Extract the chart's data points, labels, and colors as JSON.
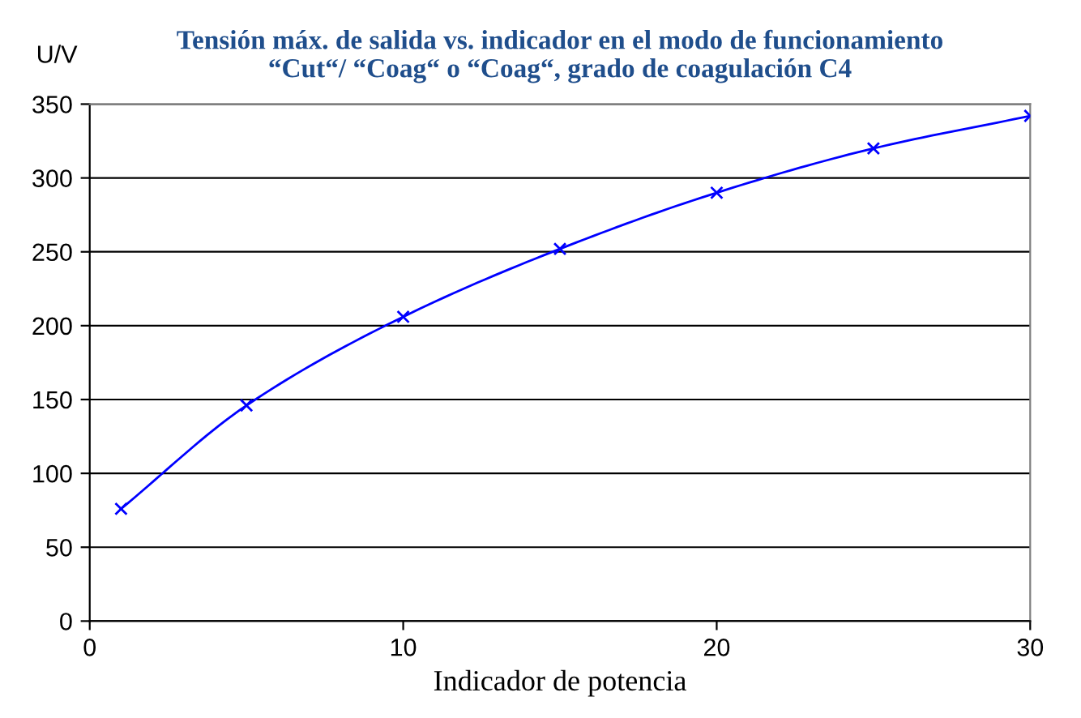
{
  "chart_data": {
    "type": "line",
    "title": "Tensión máx. de salida vs. indicador en el modo de funcionamiento\n“Cut“/ “Coag“ o “Coag“, grado de coagulación C4",
    "xlabel": "Indicador de potencia",
    "ylabel": "U/V",
    "x": [
      1,
      5,
      10,
      15,
      20,
      25,
      30
    ],
    "series": [
      {
        "color": "#0000ff",
        "values": [
          76,
          146,
          206,
          252,
          290,
          320,
          342
        ]
      }
    ],
    "xlim": [
      0,
      30
    ],
    "xticks": [
      0,
      10,
      20,
      30
    ],
    "ylim": [
      0,
      350
    ],
    "yticks": [
      0,
      50,
      100,
      150,
      200,
      250,
      300,
      350
    ],
    "grid": "y",
    "marker": "cross",
    "line_style": "solid"
  }
}
